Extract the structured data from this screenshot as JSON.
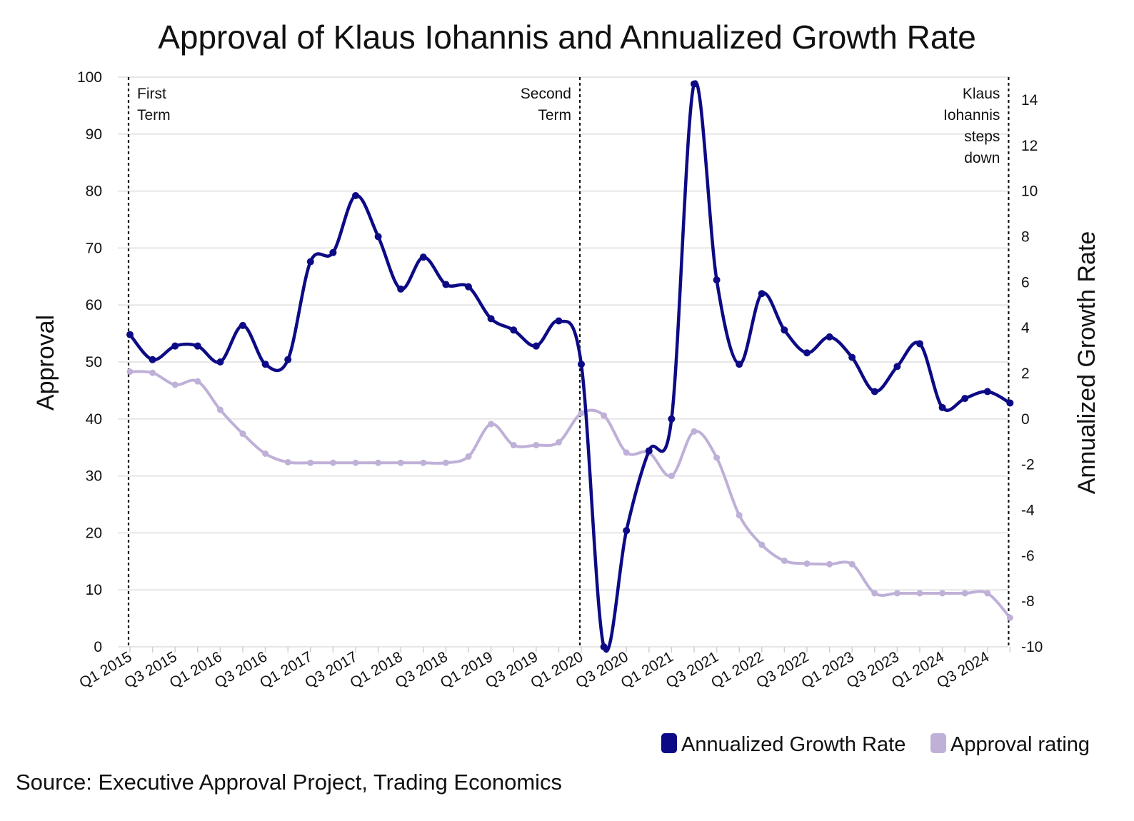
{
  "chart_data": {
    "type": "line",
    "title": "Approval of Klaus Iohannis and Annualized Growth Rate",
    "ylabel": "Approval",
    "y2label": "Annualized Growth Rate",
    "xlabel": "",
    "ylim": [
      0,
      100
    ],
    "y2lim": [
      -10,
      15
    ],
    "yticks": [
      "0",
      "10",
      "20",
      "30",
      "40",
      "50",
      "60",
      "70",
      "80",
      "90",
      "100"
    ],
    "y2ticks": [
      "-10",
      "-8",
      "-6",
      "-4",
      "-2",
      "0",
      "2",
      "4",
      "6",
      "8",
      "10",
      "12",
      "14"
    ],
    "x": [
      "Q1 2015",
      "Q2 2015",
      "Q3 2015",
      "Q4 2015",
      "Q1 2016",
      "Q2 2016",
      "Q3 2016",
      "Q4 2016",
      "Q1 2017",
      "Q2 2017",
      "Q3 2017",
      "Q4 2017",
      "Q1 2018",
      "Q2 2018",
      "Q3 2018",
      "Q4 2018",
      "Q1 2019",
      "Q2 2019",
      "Q3 2019",
      "Q4 2019",
      "Q1 2020",
      "Q2 2020",
      "Q3 2020",
      "Q4 2020",
      "Q1 2021",
      "Q2 2021",
      "Q3 2021",
      "Q4 2021",
      "Q1 2022",
      "Q2 2022",
      "Q3 2022",
      "Q4 2022",
      "Q1 2023",
      "Q2 2023",
      "Q3 2023",
      "Q4 2023",
      "Q1 2024",
      "Q2 2024",
      "Q3 2024",
      "Q4 2024"
    ],
    "xtick_labels": [
      "Q1 2015",
      "Q3 2015",
      "Q1 2016",
      "Q3 2016",
      "Q1 2017",
      "Q3 2017",
      "Q1 2018",
      "Q3 2018",
      "Q1 2019",
      "Q3 2019",
      "Q1 2020",
      "Q3 2020",
      "Q1 2021",
      "Q3 2021",
      "Q1 2022",
      "Q3 2022",
      "Q1 2023",
      "Q3 2023",
      "Q1 2024",
      "Q3 2024"
    ],
    "series": [
      {
        "name": "Annualized Growth Rate",
        "axis": "right",
        "color": "#0d0a85",
        "values": [
          3.7,
          2.6,
          3.2,
          3.2,
          2.5,
          4.1,
          2.4,
          2.6,
          6.9,
          7.3,
          9.8,
          8.0,
          5.7,
          7.1,
          5.9,
          5.8,
          4.4,
          3.9,
          3.2,
          4.3,
          2.4,
          -10.0,
          -4.9,
          -1.4,
          0.0,
          14.7,
          6.1,
          2.4,
          5.5,
          3.9,
          2.9,
          3.6,
          2.7,
          1.2,
          2.3,
          3.3,
          0.5,
          0.9,
          1.2,
          0.7
        ]
      },
      {
        "name": "Approval rating",
        "axis": "left",
        "color": "#bfb0d8",
        "values": [
          48.3,
          48.1,
          46.0,
          46.6,
          41.6,
          37.4,
          33.9,
          32.4,
          32.3,
          32.3,
          32.3,
          32.3,
          32.3,
          32.3,
          32.3,
          33.4,
          39.1,
          35.4,
          35.4,
          35.9,
          41.0,
          40.6,
          34.1,
          34.1,
          30.0,
          37.8,
          33.2,
          23.1,
          17.9,
          15.1,
          14.6,
          14.5,
          14.5,
          9.4,
          9.4,
          9.4,
          9.4,
          9.4,
          9.4,
          5.1
        ]
      }
    ],
    "annotations": [
      {
        "x": "Q1 2015",
        "lines": [
          "First",
          "Term"
        ],
        "side": "right"
      },
      {
        "x": "Q1 2020",
        "lines": [
          "Second",
          "Term"
        ],
        "side": "left"
      },
      {
        "x": "Q4 2024",
        "lines": [
          "Klaus",
          "Iohannis",
          "steps",
          "down"
        ],
        "side": "left"
      }
    ],
    "legend": {
      "position": "bottom-right",
      "entries": [
        "Annualized Growth Rate",
        "Approval rating"
      ]
    },
    "grid": true
  },
  "source": "Source: Executive Approval Project, Trading Economics"
}
